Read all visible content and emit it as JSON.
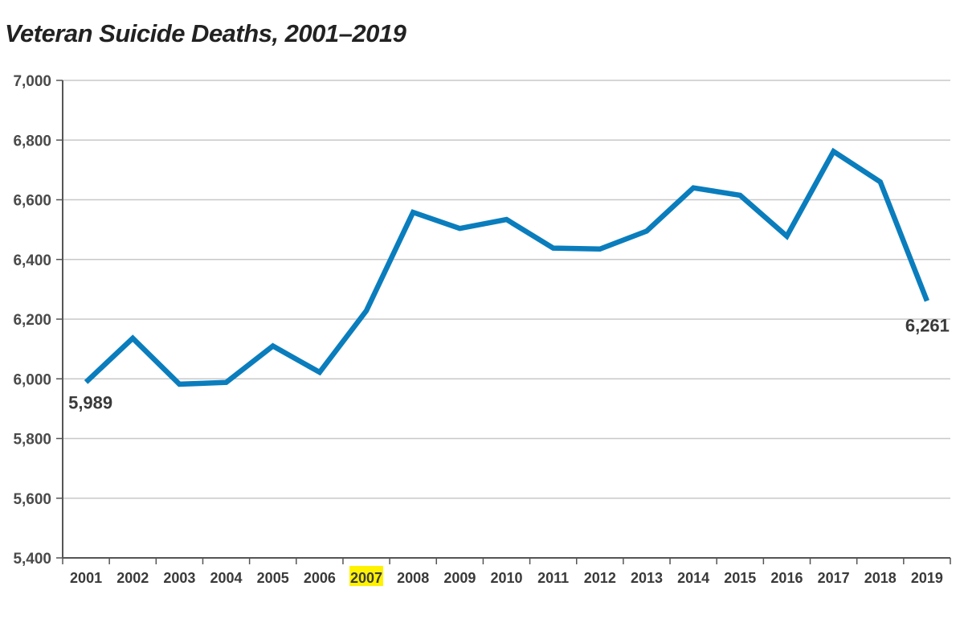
{
  "chart_data": {
    "type": "line",
    "title": "Veteran Suicide Deaths, 2001–2019",
    "xlabel": "",
    "ylabel": "",
    "ylim": [
      5400,
      7000
    ],
    "yticks": [
      "5,400",
      "5,600",
      "5,800",
      "6,000",
      "6,200",
      "6,400",
      "6,600",
      "6,800",
      "7,000"
    ],
    "ytick_values": [
      5400,
      5600,
      5800,
      6000,
      6200,
      6400,
      6600,
      6800,
      7000
    ],
    "grid": true,
    "categories": [
      "2001",
      "2002",
      "2003",
      "2004",
      "2005",
      "2006",
      "2007",
      "2008",
      "2009",
      "2010",
      "2011",
      "2012",
      "2013",
      "2014",
      "2015",
      "2016",
      "2017",
      "2018",
      "2019"
    ],
    "highlighted_category": "2007",
    "highlight_color": "#fff200",
    "series": [
      {
        "color": "#0a7dbd",
        "values": [
          5989,
          6136,
          5982,
          5988,
          6110,
          6022,
          6228,
          6558,
          6504,
          6534,
          6438,
          6435,
          6495,
          6640,
          6615,
          6478,
          6762,
          6660,
          6261
        ]
      }
    ],
    "annotations": [
      {
        "category": "2001",
        "text": "5,989"
      },
      {
        "category": "2019",
        "text": "6,261"
      }
    ]
  }
}
